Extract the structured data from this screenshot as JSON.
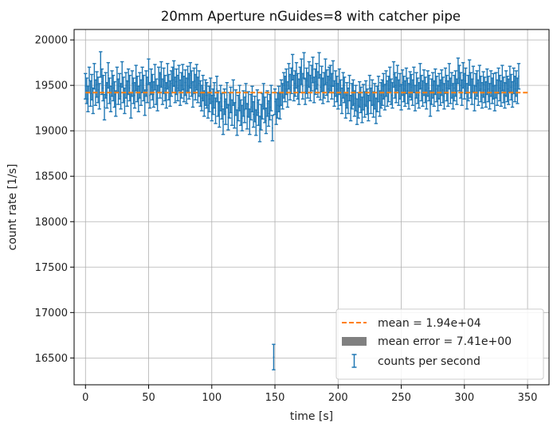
{
  "chart_data": {
    "type": "scatter",
    "title": "20mm Aperture nGuides=8 with catcher pipe",
    "xlabel": "time [s]",
    "ylabel": "count rate [1/s]",
    "xlim": [
      -9,
      367
    ],
    "ylim": [
      16205,
      20115
    ],
    "xticks": [
      0,
      50,
      100,
      150,
      200,
      250,
      300,
      350
    ],
    "yticks": [
      16500,
      17000,
      17500,
      18000,
      18500,
      19000,
      19500,
      20000
    ],
    "grid": true,
    "legend_position": "lower-right",
    "colors": {
      "counts": "#1f77b4",
      "mean": "#ff7f0e",
      "mean_error": "#808080"
    },
    "mean": {
      "label": "mean = 1.94e+04",
      "value": 19420,
      "x_range": [
        0,
        351
      ]
    },
    "mean_error": {
      "label": "mean error = 7.41e+00",
      "value": 7.41
    },
    "counts": {
      "label": "counts per second",
      "error": 140,
      "t0": 0,
      "dt": 1,
      "y": [
        19490,
        19440,
        19350,
        19560,
        19410,
        19480,
        19330,
        19600,
        19420,
        19510,
        19450,
        19380,
        19730,
        19540,
        19470,
        19260,
        19500,
        19390,
        19610,
        19440,
        19350,
        19520,
        19470,
        19400,
        19300,
        19560,
        19430,
        19490,
        19380,
        19620,
        19450,
        19330,
        19500,
        19410,
        19540,
        19470,
        19280,
        19520,
        19440,
        19390,
        19580,
        19460,
        19350,
        19500,
        19420,
        19560,
        19470,
        19310,
        19520,
        19450,
        19650,
        19390,
        19540,
        19480,
        19400,
        19590,
        19430,
        19360,
        19560,
        19500,
        19620,
        19430,
        19550,
        19470,
        19390,
        19600,
        19480,
        19410,
        19520,
        19560,
        19630,
        19450,
        19540,
        19470,
        19580,
        19420,
        19500,
        19590,
        19460,
        19530,
        19440,
        19570,
        19490,
        19610,
        19520,
        19400,
        19550,
        19480,
        19590,
        19450,
        19520,
        19410,
        19360,
        19470,
        19300,
        19420,
        19390,
        19280,
        19350,
        19440,
        19250,
        19320,
        19390,
        19220,
        19460,
        19300,
        19180,
        19360,
        19270,
        19100,
        19320,
        19210,
        19390,
        19150,
        19280,
        19340,
        19200,
        19420,
        19170,
        19310,
        19090,
        19250,
        19360,
        19200,
        19140,
        19300,
        19230,
        19380,
        19160,
        19290,
        19100,
        19260,
        19350,
        19180,
        19240,
        19090,
        19310,
        19200,
        19020,
        19150,
        19270,
        19380,
        19230,
        19110,
        19300,
        19190,
        19260,
        19360,
        19030,
        18990,
        19320,
        19210,
        19280,
        19350,
        19270,
        19420,
        19380,
        19500,
        19460,
        19540,
        19400,
        19600,
        19480,
        19550,
        19700,
        19470,
        19520,
        19610,
        19490,
        19430,
        19560,
        19650,
        19490,
        19720,
        19430,
        19550,
        19500,
        19620,
        19470,
        19580,
        19670,
        19450,
        19540,
        19600,
        19510,
        19720,
        19480,
        19570,
        19440,
        19500,
        19650,
        19530,
        19460,
        19560,
        19580,
        19490,
        19630,
        19410,
        19520,
        19460,
        19380,
        19540,
        19420,
        19330,
        19500,
        19450,
        19280,
        19390,
        19330,
        19470,
        19250,
        19380,
        19420,
        19300,
        19360,
        19210,
        19280,
        19400,
        19340,
        19230,
        19370,
        19290,
        19410,
        19320,
        19250,
        19470,
        19330,
        19420,
        19290,
        19380,
        19220,
        19350,
        19460,
        19300,
        19390,
        19420,
        19490,
        19370,
        19520,
        19410,
        19460,
        19560,
        19430,
        19390,
        19620,
        19500,
        19450,
        19580,
        19420,
        19490,
        19370,
        19530,
        19460,
        19410,
        19550,
        19440,
        19380,
        19510,
        19480,
        19420,
        19560,
        19360,
        19500,
        19440,
        19390,
        19600,
        19470,
        19410,
        19530,
        19450,
        19380,
        19520,
        19470,
        19300,
        19430,
        19500,
        19410,
        19540,
        19460,
        19360,
        19490,
        19420,
        19530,
        19450,
        19380,
        19550,
        19470,
        19410,
        19600,
        19440,
        19500,
        19380,
        19470,
        19520,
        19430,
        19660,
        19580,
        19500,
        19420,
        19610,
        19490,
        19550,
        19380,
        19470,
        19640,
        19500,
        19430,
        19570,
        19360,
        19490,
        19520,
        19420,
        19580,
        19460,
        19390,
        19510,
        19450,
        19400,
        19540,
        19460,
        19380,
        19520,
        19440,
        19490,
        19360,
        19500,
        19420,
        19550,
        19470,
        19410,
        19580,
        19450,
        19390,
        19520,
        19460,
        19430,
        19570,
        19480,
        19400,
        19550,
        19460,
        19520,
        19440,
        19600
      ],
      "outlier": {
        "x": 149,
        "y": 16510
      }
    }
  }
}
